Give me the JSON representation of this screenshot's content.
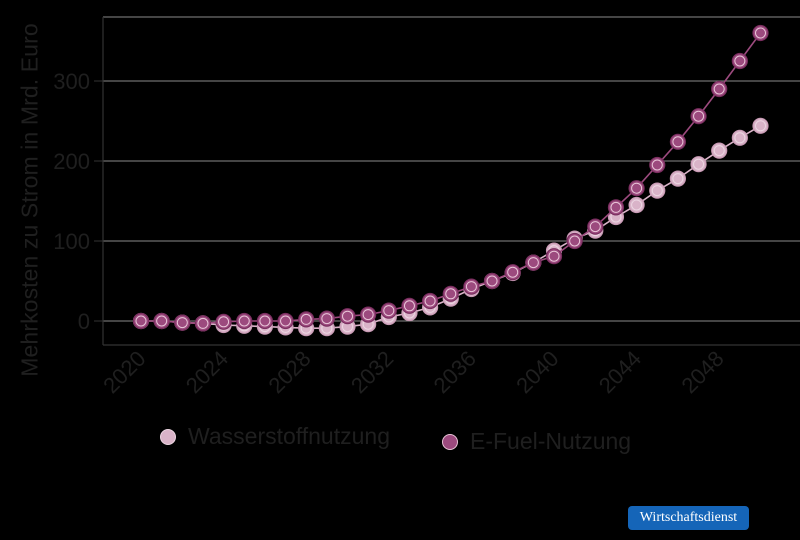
{
  "chart_data": {
    "type": "line",
    "title": "",
    "xlabel": "",
    "ylabel": "Mehrkosten zu Strom in Mrd. Euro",
    "ylim": [
      -30,
      380
    ],
    "xlim": [
      2018,
      2052
    ],
    "grid": true,
    "legend_position": "bottom",
    "x": [
      2020,
      2021,
      2022,
      2023,
      2024,
      2025,
      2026,
      2027,
      2028,
      2029,
      2030,
      2031,
      2032,
      2033,
      2034,
      2035,
      2036,
      2037,
      2038,
      2039,
      2040,
      2041,
      2042,
      2043,
      2044,
      2045,
      2046,
      2047,
      2048,
      2049,
      2050
    ],
    "x_ticks": [
      2020,
      2024,
      2028,
      2032,
      2036,
      2040,
      2044,
      2048
    ],
    "y_ticks": [
      0,
      100,
      200,
      300
    ],
    "series": [
      {
        "name": "Wasserstoffnutzung",
        "color": "#d9b3c8",
        "values": [
          0,
          0,
          -2,
          -3,
          -5,
          -6,
          -7,
          -8,
          -9,
          -9,
          -7,
          -4,
          5,
          10,
          17,
          28,
          40,
          50,
          60,
          73,
          88,
          103,
          113,
          130,
          145,
          163,
          178,
          196,
          213,
          229,
          244
        ]
      },
      {
        "name": "E-Fuel-Nutzung",
        "color": "#9c4a7e",
        "values": [
          0,
          0,
          -2,
          -3,
          -1,
          0,
          0,
          0,
          2,
          3,
          6,
          8,
          13,
          19,
          25,
          34,
          43,
          50,
          61,
          73,
          81,
          100,
          118,
          142,
          166,
          195,
          224,
          256,
          290,
          325,
          360
        ]
      }
    ]
  },
  "axes": {
    "ylabel": "Mehrkosten zu Strom in Mrd. Euro",
    "y_tick_labels": [
      "0",
      "100",
      "200",
      "300"
    ],
    "x_tick_labels": [
      "2020",
      "2024",
      "2028",
      "2032",
      "2036",
      "2040",
      "2044",
      "2048"
    ]
  },
  "legend": {
    "items": [
      {
        "label": "Wasserstoffnutzung",
        "color": "#d9b3c8"
      },
      {
        "label": "E-Fuel-Nutzung",
        "color": "#9c4a7e"
      }
    ]
  },
  "colors": {
    "background": "#000000",
    "gridline": "#8a8a8a",
    "axis": "#333333",
    "text": "#1f1f1f",
    "badge": "#1565b8"
  },
  "source_badge": {
    "label": "Wirtschaftsdienst"
  }
}
